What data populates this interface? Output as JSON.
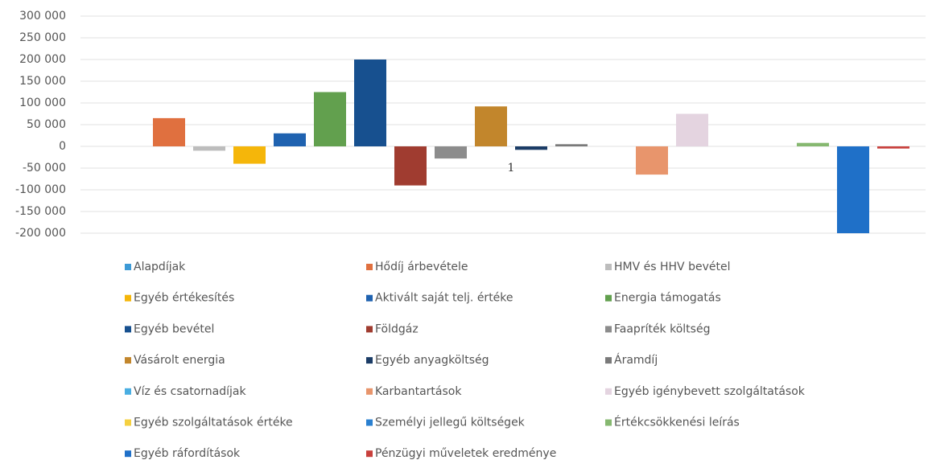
{
  "chart_data": {
    "type": "bar",
    "categories": [
      "1"
    ],
    "ylim": [
      -200000,
      300000
    ],
    "yticks": [
      {
        "value": -200000,
        "label": "-200 000"
      },
      {
        "value": -150000,
        "label": "-150 000"
      },
      {
        "value": -100000,
        "label": "-100 000"
      },
      {
        "value": -50000,
        "label": "-50 000"
      },
      0,
      {
        "value": 50000,
        "label": "50 000"
      },
      {
        "value": 100000,
        "label": "100 000"
      },
      {
        "value": 150000,
        "label": "150 000"
      },
      {
        "value": 200000,
        "label": "200 000"
      },
      {
        "value": 250000,
        "label": "250 000"
      },
      {
        "value": 300000,
        "label": "300 000"
      }
    ],
    "grid": true,
    "legend": "bottom",
    "series": [
      {
        "name": "Alapdíjak",
        "color": "#3d9ad6",
        "values": [
          0
        ]
      },
      {
        "name": "Hődíj árbevétele",
        "color": "#e0703f",
        "values": [
          65000
        ]
      },
      {
        "name": "HMV és HHV bevétel",
        "color": "#bdbdbd",
        "values": [
          -10000
        ]
      },
      {
        "name": "Egyéb értékesítés",
        "color": "#f5b60a",
        "values": [
          -40000
        ]
      },
      {
        "name": "Aktivált saját telj. értéke",
        "color": "#1f62b0",
        "values": [
          30000
        ]
      },
      {
        "name": "Energia támogatás",
        "color": "#62a04e",
        "values": [
          125000
        ]
      },
      {
        "name": "Egyéb bevétel",
        "color": "#17508f",
        "values": [
          200000
        ]
      },
      {
        "name": "Földgáz",
        "color": "#a03c30",
        "values": [
          -90000
        ]
      },
      {
        "name": "Faapríték költség",
        "color": "#8c8c8c",
        "values": [
          -28000
        ]
      },
      {
        "name": "Vásárolt energia",
        "color": "#c2862c",
        "values": [
          92000
        ]
      },
      {
        "name": "Egyéb anyagköltség",
        "color": "#1b3c66",
        "values": [
          -8000
        ]
      },
      {
        "name": "Áramdíj",
        "color": "#7a7a7a",
        "values": [
          5000
        ]
      },
      {
        "name": "Víz és csatornadíjak",
        "color": "#4aaee2",
        "values": [
          0
        ]
      },
      {
        "name": "Karbantartások",
        "color": "#e8956c",
        "values": [
          -65000
        ]
      },
      {
        "name": "Egyéb igénybevett szolgáltatások",
        "color": "#e4d4e0",
        "values": [
          75000
        ]
      },
      {
        "name": "Egyéb szolgáltatások értéke",
        "color": "#f5d040",
        "values": [
          0
        ]
      },
      {
        "name": "Személyi jellegű költségek",
        "color": "#2a80d0",
        "values": [
          0
        ]
      },
      {
        "name": "Értékcsökkenési leírás",
        "color": "#86b870",
        "values": [
          8000
        ]
      },
      {
        "name": "Egyéb ráfordítások",
        "color": "#1f70c8",
        "values": [
          -200000
        ]
      },
      {
        "name": "Pénzügyi műveletek eredménye",
        "color": "#c8403c",
        "values": [
          -5000
        ]
      }
    ]
  }
}
